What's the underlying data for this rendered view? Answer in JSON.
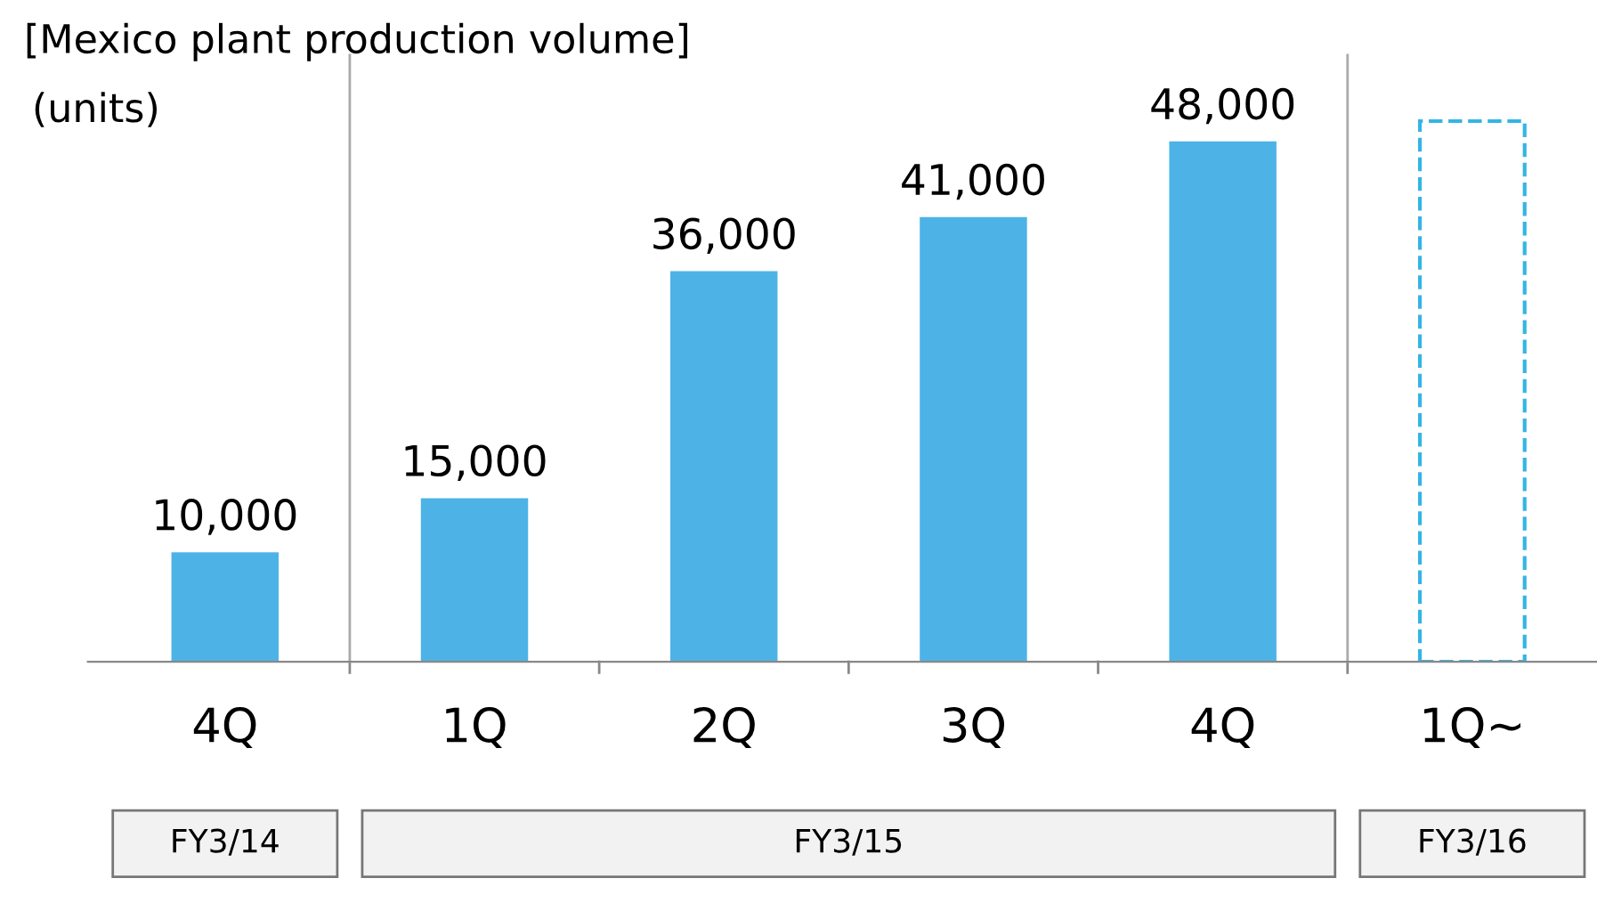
{
  "chart_data": {
    "type": "bar",
    "title": "[Mexico plant production volume]",
    "ylabel": "(units)",
    "categories": [
      "4Q",
      "1Q",
      "2Q",
      "3Q",
      "4Q",
      "1Q∼"
    ],
    "series": [
      {
        "color": "#4db3e6",
        "values": [
          10000,
          15000,
          36000,
          41000,
          48000,
          null
        ],
        "value_labels": [
          "10,000",
          "15,000",
          "36,000",
          "41,000",
          "48,000",
          null
        ]
      },
      {
        "color": "#33b5e5",
        "values": [
          null,
          null,
          null,
          null,
          null,
          50000
        ],
        "line_style": "dashed"
      }
    ],
    "annotations": [
      "FY3/14",
      "FY3/15",
      "FY3/16"
    ],
    "tick_labels": "x",
    "grid": false,
    "legend": false
  }
}
